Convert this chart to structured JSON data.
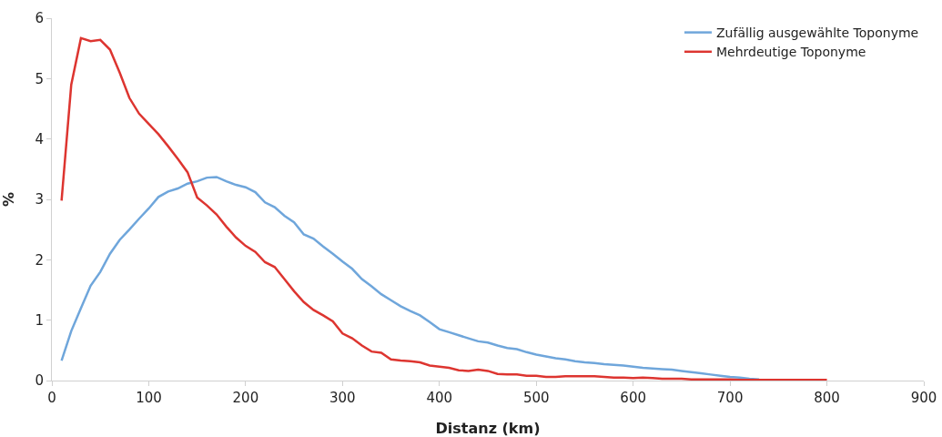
{
  "chart_data": {
    "type": "line",
    "xlabel": "Distanz (km)",
    "ylabel": "%",
    "x": [
      10,
      20,
      30,
      40,
      50,
      60,
      70,
      80,
      90,
      100,
      110,
      120,
      130,
      140,
      150,
      160,
      170,
      180,
      190,
      200,
      210,
      220,
      230,
      240,
      250,
      260,
      270,
      280,
      290,
      300,
      310,
      320,
      330,
      340,
      350,
      360,
      370,
      380,
      390,
      400,
      410,
      420,
      430,
      440,
      450,
      460,
      470,
      480,
      490,
      500,
      510,
      520,
      530,
      540,
      550,
      560,
      570,
      580,
      590,
      600,
      610,
      620,
      630,
      640,
      650,
      660,
      670,
      680,
      690,
      700,
      710,
      720,
      730,
      740,
      750,
      760,
      770,
      780,
      790,
      800
    ],
    "series": [
      {
        "name": "Zufällig ausgewählte Toponyme",
        "color": "#6fa6db",
        "values": [
          0.33,
          0.82,
          1.2,
          1.57,
          1.8,
          2.1,
          2.33,
          2.5,
          2.68,
          2.85,
          3.04,
          3.13,
          3.18,
          3.26,
          3.3,
          3.36,
          3.37,
          3.3,
          3.24,
          3.2,
          3.12,
          2.95,
          2.87,
          2.73,
          2.62,
          2.42,
          2.35,
          2.22,
          2.1,
          1.97,
          1.85,
          1.68,
          1.56,
          1.43,
          1.33,
          1.23,
          1.15,
          1.08,
          0.97,
          0.85,
          0.8,
          0.75,
          0.7,
          0.65,
          0.63,
          0.58,
          0.54,
          0.52,
          0.47,
          0.43,
          0.4,
          0.37,
          0.35,
          0.32,
          0.3,
          0.29,
          0.27,
          0.26,
          0.25,
          0.23,
          0.21,
          0.2,
          0.19,
          0.18,
          0.16,
          0.14,
          0.12,
          0.1,
          0.08,
          0.06,
          0.05,
          0.03,
          0.02,
          null,
          null,
          null,
          null,
          null,
          null,
          null
        ]
      },
      {
        "name": "Mehrdeutige Toponyme",
        "color": "#dd3530",
        "values": [
          2.98,
          4.9,
          5.67,
          5.62,
          5.64,
          5.48,
          5.1,
          4.68,
          4.42,
          4.25,
          4.08,
          3.88,
          3.67,
          3.45,
          3.03,
          2.9,
          2.75,
          2.55,
          2.37,
          2.23,
          2.13,
          1.96,
          1.88,
          1.68,
          1.48,
          1.3,
          1.17,
          1.08,
          0.98,
          0.78,
          0.7,
          0.58,
          0.48,
          0.46,
          0.35,
          0.33,
          0.32,
          0.3,
          0.25,
          0.23,
          0.21,
          0.17,
          0.16,
          0.18,
          0.16,
          0.11,
          0.1,
          0.1,
          0.08,
          0.08,
          0.06,
          0.06,
          0.07,
          0.07,
          0.07,
          0.07,
          0.06,
          0.05,
          0.05,
          0.04,
          0.05,
          0.04,
          0.03,
          0.03,
          0.03,
          0.02,
          0.02,
          0.02,
          0.02,
          0.02,
          0.01,
          0.01,
          0.01,
          0.01,
          0.01,
          0.01,
          0.01,
          0.01,
          0.01,
          0.01
        ]
      }
    ],
    "xlim": [
      0,
      900
    ],
    "xticks": [
      0,
      100,
      200,
      300,
      400,
      500,
      600,
      700,
      800,
      900
    ],
    "ylim": [
      0,
      6
    ],
    "yticks": [
      0,
      1,
      2,
      3,
      4,
      5,
      6
    ],
    "grid": false,
    "legend": "top right",
    "marker": "none",
    "line_style": "solid"
  }
}
